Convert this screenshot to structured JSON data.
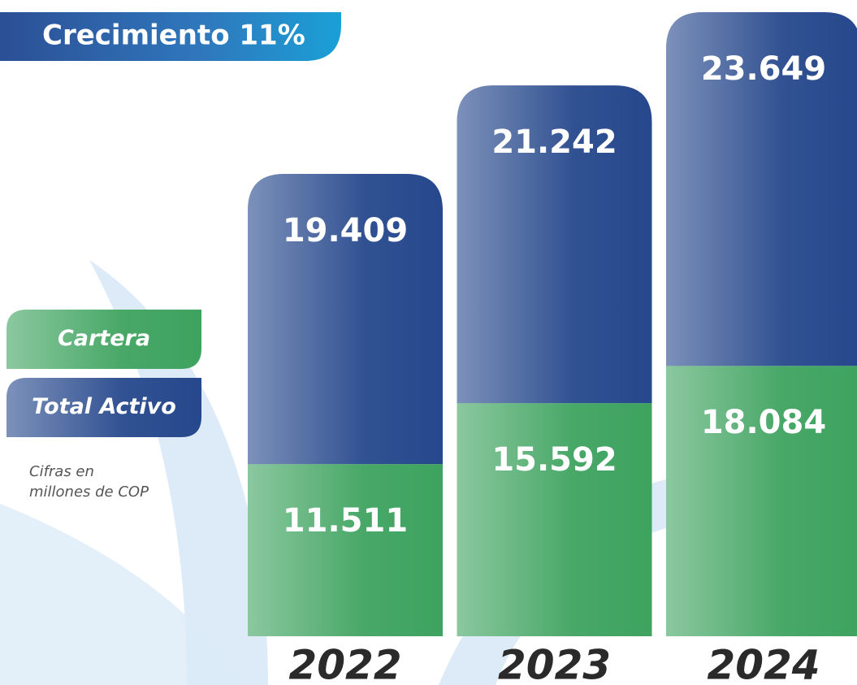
{
  "chart_data": {
    "type": "stacked-bar",
    "title": "Crecimiento 11%",
    "note": [
      "Cifras en",
      "millones de COP"
    ],
    "categories": [
      "2022",
      "2023",
      "2024"
    ],
    "series": [
      {
        "name": "Cartera",
        "color": "#3ea35f",
        "values": [
          11511,
          15592,
          18084
        ],
        "value_labels": [
          "11.511",
          "15.592",
          "18.084"
        ]
      },
      {
        "name": "Total Activo",
        "color": "#26488c",
        "values": [
          19409,
          21242,
          23649
        ],
        "value_labels": [
          "19.409",
          "21.242",
          "23.649"
        ]
      }
    ]
  }
}
